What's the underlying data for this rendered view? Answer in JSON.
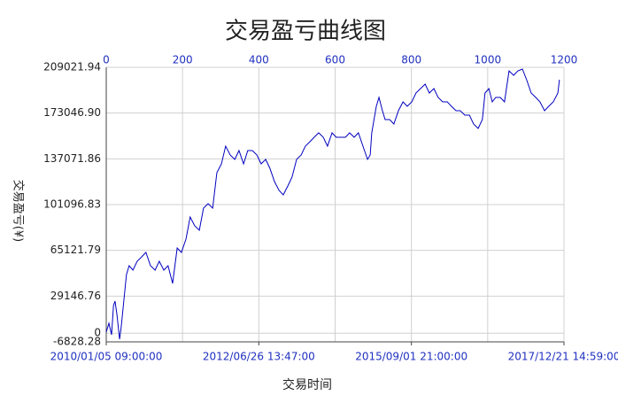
{
  "chart_data": {
    "type": "line",
    "title": "交易盈亏曲线图",
    "xlabel": "交易时间",
    "ylabel": "交易盈亏(¥)",
    "xlim": [
      0,
      1200
    ],
    "xticks": [
      0,
      200,
      400,
      600,
      800,
      1000,
      1200
    ],
    "x_labels": [
      {
        "value": 0,
        "label": "2010/01/05 09:00:00"
      },
      {
        "value": 400,
        "label": "2012/06/26 13:47:00"
      },
      {
        "value": 800,
        "label": "2015/09/01 21:00:00"
      },
      {
        "value": 1200,
        "label": "2017/12/21 14:59:00"
      }
    ],
    "ylim": [
      -6828.28,
      209021.94
    ],
    "yticks": [
      209021.94,
      {
        "value": 173046.9,
        "label": "173046.90"
      },
      137071.86,
      101096.83,
      65121.79,
      29146.76,
      0,
      -6828.28
    ],
    "grid": true,
    "color": "#0000c0",
    "x": [
      0,
      7,
      14,
      19,
      23,
      28,
      35,
      39,
      46,
      53,
      60,
      70,
      81,
      93,
      104,
      116,
      128,
      139,
      151,
      162,
      174,
      186,
      197,
      209,
      220,
      232,
      244,
      255,
      267,
      279,
      290,
      302,
      313,
      325,
      337,
      348,
      360,
      371,
      383,
      395,
      406,
      418,
      429,
      441,
      453,
      464,
      476,
      487,
      499,
      511,
      522,
      534,
      545,
      557,
      569,
      580,
      592,
      603,
      615,
      627,
      638,
      650,
      661,
      673,
      685,
      692,
      696,
      708,
      715,
      724,
      731,
      743,
      754,
      766,
      778,
      789,
      801,
      812,
      824,
      836,
      847,
      859,
      870,
      882,
      894,
      905,
      917,
      928,
      940,
      952,
      963,
      975,
      986,
      993,
      1003,
      1012,
      1021,
      1033,
      1044,
      1056,
      1068,
      1079,
      1091,
      1102,
      1114,
      1126,
      1137,
      1149,
      1160,
      1172,
      1184,
      1188
    ],
    "values": [
      828,
      7791,
      -1261,
      21717,
      25199,
      14754,
      -4742,
      4310,
      25199,
      46088,
      53051,
      49569,
      56532,
      60014,
      63495,
      53051,
      49569,
      56532,
      49569,
      53051,
      39125,
      66977,
      63495,
      73940,
      91347,
      84384,
      80903,
      98310,
      101792,
      98310,
      126162,
      133125,
      147051,
      140088,
      136607,
      143570,
      133125,
      143570,
      143570,
      140088,
      133125,
      136607,
      129644,
      119199,
      112236,
      108755,
      115718,
      122681,
      136607,
      140088,
      147051,
      150533,
      154014,
      157496,
      154014,
      147051,
      157496,
      154014,
      154014,
      154014,
      157496,
      154014,
      157496,
      147051,
      136607,
      140088,
      157496,
      178385,
      185348,
      174903,
      167940,
      167940,
      164459,
      174903,
      181866,
      178385,
      181866,
      188829,
      192311,
      195792,
      188829,
      192311,
      185348,
      181866,
      181866,
      178385,
      174903,
      174903,
      171422,
      171422,
      164459,
      160977,
      167940,
      188829,
      192311,
      181866,
      185348,
      185348,
      181866,
      206237,
      202755,
      206237,
      207629,
      199274,
      188829,
      185348,
      181866,
      174903,
      178385,
      181866,
      188829,
      199274
    ]
  }
}
